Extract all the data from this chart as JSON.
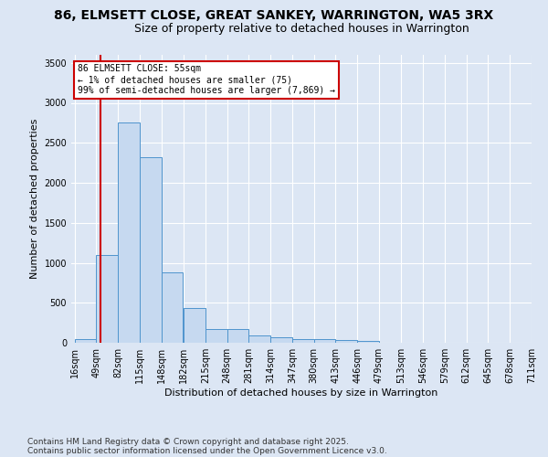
{
  "title": "86, ELMSETT CLOSE, GREAT SANKEY, WARRINGTON, WA5 3RX",
  "subtitle": "Size of property relative to detached houses in Warrington",
  "xlabel": "Distribution of detached houses by size in Warrington",
  "ylabel": "Number of detached properties",
  "footnote1": "Contains HM Land Registry data © Crown copyright and database right 2025.",
  "footnote2": "Contains public sector information licensed under the Open Government Licence v3.0.",
  "bin_edges": [
    16,
    49,
    82,
    115,
    148,
    182,
    215,
    248,
    281,
    314,
    347,
    380,
    413,
    446,
    479,
    513,
    546,
    579,
    612,
    645,
    678,
    711
  ],
  "bar_heights": [
    50,
    1100,
    2750,
    2325,
    880,
    440,
    170,
    170,
    90,
    65,
    50,
    50,
    30,
    25,
    5,
    0,
    0,
    0,
    0,
    0,
    0
  ],
  "bar_color": "#c6d9f0",
  "bar_edge_color": "#4f94cd",
  "property_size": 55,
  "red_line_color": "#cc0000",
  "annotation_line1": "86 ELMSETT CLOSE: 55sqm",
  "annotation_line2": "← 1% of detached houses are smaller (75)",
  "annotation_line3": "99% of semi-detached houses are larger (7,869) →",
  "annotation_box_edge": "#cc0000",
  "annotation_box_face": "#ffffff",
  "ylim": [
    0,
    3600
  ],
  "yticks": [
    0,
    500,
    1000,
    1500,
    2000,
    2500,
    3000,
    3500
  ],
  "bg_color": "#dce6f4",
  "plot_bg_color": "#dce6f4",
  "grid_color": "#ffffff",
  "title_fontsize": 10,
  "subtitle_fontsize": 9,
  "axis_label_fontsize": 8,
  "tick_fontsize": 7,
  "annotation_fontsize": 7,
  "footnote_fontsize": 6.5
}
